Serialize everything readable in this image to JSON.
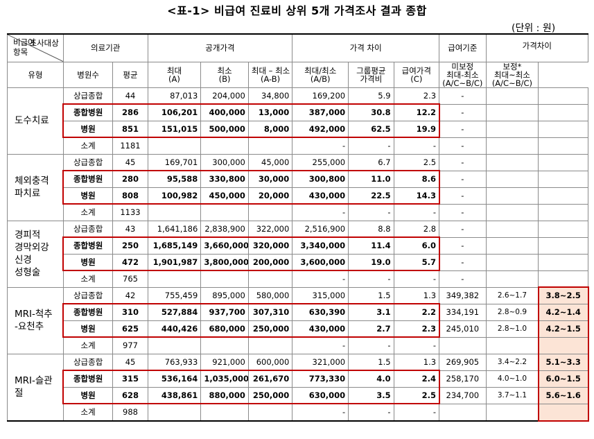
{
  "title": "<표-1> 비급여 진료비 상위 5개 가격조사 결과 종합",
  "unit": "(단위 : 원)",
  "header": {
    "diag_top": "조사대상",
    "diag_bottom": "비급여\n항목",
    "institution": "의료기관",
    "public_price": "공개가격",
    "price_diff": "가격 차이",
    "benefit_standard": "급여기준",
    "benefit_diff": "가격차이",
    "uncorrected": "미보정",
    "corrected": "보정*",
    "type": "유형",
    "hospital_count": "병원수",
    "avg": "평균",
    "max": "최대",
    "max_sub": "(A)",
    "min": "최소",
    "min_sub": "(B)",
    "max_minus_min": "최대 – 최소",
    "max_minus_min_sub": "(A-B)",
    "max_div_min": "최대/최소",
    "max_div_min_sub": "(A/B)",
    "group_avg": "그룹평균",
    "group_avg_sub": "가격비",
    "benefit_price": "급여가격",
    "benefit_price_sub": "(C)",
    "uncorr_range": "최대-최소",
    "uncorr_range_sub": "(A/C~B/C)",
    "corr_range": "최대~최소",
    "corr_range_sub": "(A/C~B/C)"
  },
  "categories": [
    {
      "name": "도수치료",
      "rows": [
        {
          "type": "상급종합",
          "count": "44",
          "avg": "87,013",
          "max": "204,000",
          "min": "34,800",
          "diff": "169,200",
          "ratio": "5.9",
          "group": "2.3",
          "benefit": "-",
          "uncorr": "",
          "corr": ""
        },
        {
          "type": "종합병원",
          "count": "286",
          "avg": "106,201",
          "max": "400,000",
          "min": "13,000",
          "diff": "387,000",
          "ratio": "30.8",
          "group": "12.2",
          "benefit": "-",
          "uncorr": "",
          "corr": ""
        },
        {
          "type": "병원",
          "count": "851",
          "avg": "151,015",
          "max": "500,000",
          "min": "8,000",
          "diff": "492,000",
          "ratio": "62.5",
          "group": "19.9",
          "benefit": "-",
          "uncorr": "",
          "corr": ""
        },
        {
          "type": "소계",
          "count": "1181",
          "avg": "",
          "max": "",
          "min": "",
          "diff": "-",
          "ratio": "-",
          "group": "-",
          "benefit": "-",
          "uncorr": "",
          "corr": ""
        }
      ]
    },
    {
      "name": "체외충격\n파치료",
      "rows": [
        {
          "type": "상급종합",
          "count": "45",
          "avg": "169,701",
          "max": "300,000",
          "min": "45,000",
          "diff": "255,000",
          "ratio": "6.7",
          "group": "2.5",
          "benefit": "-",
          "uncorr": "",
          "corr": ""
        },
        {
          "type": "종합병원",
          "count": "280",
          "avg": "95,588",
          "max": "330,800",
          "min": "30,000",
          "diff": "300,800",
          "ratio": "11.0",
          "group": "8.6",
          "benefit": "-",
          "uncorr": "",
          "corr": ""
        },
        {
          "type": "병원",
          "count": "808",
          "avg": "100,982",
          "max": "450,000",
          "min": "20,000",
          "diff": "430,000",
          "ratio": "22.5",
          "group": "14.3",
          "benefit": "-",
          "uncorr": "",
          "corr": ""
        },
        {
          "type": "소계",
          "count": "1133",
          "avg": "",
          "max": "",
          "min": "",
          "diff": "-",
          "ratio": "-",
          "group": "-",
          "benefit": "-",
          "uncorr": "",
          "corr": ""
        }
      ]
    },
    {
      "name": "경피적\n경막외강\n신경\n성형술",
      "rows": [
        {
          "type": "상급종합",
          "count": "43",
          "avg": "1,641,186",
          "max": "2,838,900",
          "min": "322,000",
          "diff": "2,516,900",
          "ratio": "8.8",
          "group": "2.8",
          "benefit": "-",
          "uncorr": "",
          "corr": ""
        },
        {
          "type": "종합병원",
          "count": "250",
          "avg": "1,685,149",
          "max": "3,660,000",
          "min": "320,000",
          "diff": "3,340,000",
          "ratio": "11.4",
          "group": "6.0",
          "benefit": "-",
          "uncorr": "",
          "corr": ""
        },
        {
          "type": "병원",
          "count": "472",
          "avg": "1,901,987",
          "max": "3,800,000",
          "min": "200,000",
          "diff": "3,600,000",
          "ratio": "19.0",
          "group": "5.7",
          "benefit": "-",
          "uncorr": "",
          "corr": ""
        },
        {
          "type": "소계",
          "count": "765",
          "avg": "",
          "max": "",
          "min": "",
          "diff": "-",
          "ratio": "-",
          "group": "-",
          "benefit": "-",
          "uncorr": "",
          "corr": ""
        }
      ]
    },
    {
      "name": "MRI-척추\n-요천추",
      "rows": [
        {
          "type": "상급종합",
          "count": "42",
          "avg": "755,459",
          "max": "895,000",
          "min": "580,000",
          "diff": "315,000",
          "ratio": "1.5",
          "group": "1.3",
          "benefit": "349,382",
          "uncorr": "2.6~1.7",
          "corr": "3.8~2.5"
        },
        {
          "type": "종합병원",
          "count": "310",
          "avg": "527,884",
          "max": "937,700",
          "min": "307,310",
          "diff": "630,390",
          "ratio": "3.1",
          "group": "2.2",
          "benefit": "334,191",
          "uncorr": "2.8~0.9",
          "corr": "4.2~1.4"
        },
        {
          "type": "병원",
          "count": "625",
          "avg": "440,426",
          "max": "680,000",
          "min": "250,000",
          "diff": "430,000",
          "ratio": "2.7",
          "group": "2.3",
          "benefit": "245,010",
          "uncorr": "2.8~1.0",
          "corr": "4.2~1.5"
        },
        {
          "type": "소계",
          "count": "977",
          "avg": "",
          "max": "",
          "min": "",
          "diff": "-",
          "ratio": "-",
          "group": "-",
          "benefit": "",
          "uncorr": "",
          "corr": ""
        }
      ]
    },
    {
      "name": "MRI-슬관\n절",
      "rows": [
        {
          "type": "상급종합",
          "count": "45",
          "avg": "763,933",
          "max": "921,000",
          "min": "600,000",
          "diff": "321,000",
          "ratio": "1.5",
          "group": "1.3",
          "benefit": "269,905",
          "uncorr": "3.4~2.2",
          "corr": "5.1~3.3"
        },
        {
          "type": "종합병원",
          "count": "315",
          "avg": "536,164",
          "max": "1,035,000",
          "min": "261,670",
          "diff": "773,330",
          "ratio": "4.0",
          "group": "2.4",
          "benefit": "258,170",
          "uncorr": "4.0~1.0",
          "corr": "6.0~1.5"
        },
        {
          "type": "병원",
          "count": "628",
          "avg": "438,861",
          "max": "880,000",
          "min": "250,000",
          "diff": "630,000",
          "ratio": "3.5",
          "group": "2.5",
          "benefit": "234,700",
          "uncorr": "3.7~1.1",
          "corr": "5.6~1.6"
        },
        {
          "type": "소계",
          "count": "988",
          "avg": "",
          "max": "",
          "min": "",
          "diff": "-",
          "ratio": "-",
          "group": "-",
          "benefit": "",
          "uncorr": "",
          "corr": ""
        }
      ]
    }
  ]
}
